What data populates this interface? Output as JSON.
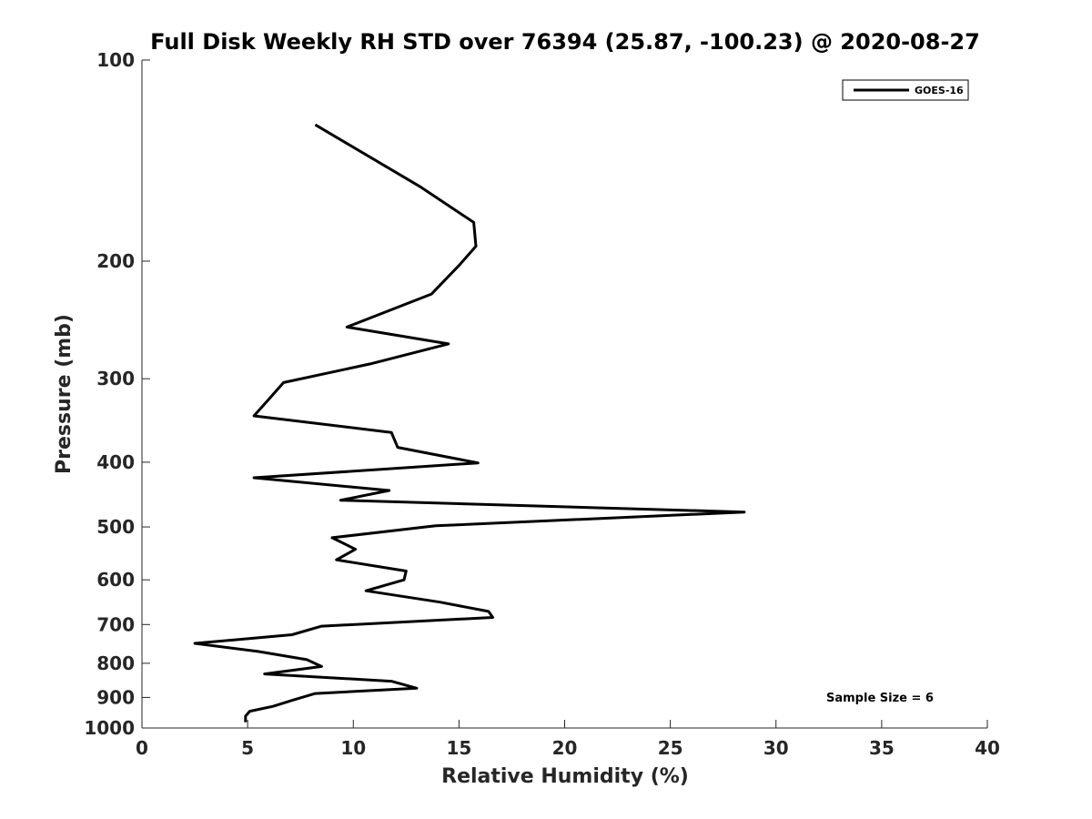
{
  "chart_data": {
    "type": "line",
    "title": "Full Disk Weekly RH STD over 76394 (25.87, -100.23) @ 2020-08-27",
    "xlabel": "Relative Humidity (%)",
    "ylabel": "Pressure (mb)",
    "xlim": [
      0,
      40
    ],
    "ylim": [
      100,
      1000
    ],
    "y_scale": "log",
    "y_inverted": true,
    "x_ticks": [
      "0",
      "5",
      "10",
      "15",
      "20",
      "25",
      "30",
      "35",
      "40"
    ],
    "y_ticks": [
      "100",
      "200",
      "300",
      "400",
      "500",
      "600",
      "700",
      "800",
      "900",
      "1000"
    ],
    "grid": false,
    "legend": {
      "placement": "top-right",
      "entries": [
        "GOES-16"
      ]
    },
    "annotation": "Sample Size = 6",
    "series": [
      {
        "name": "GOES-16",
        "color": "#000000",
        "x": [
          8.2,
          13.2,
          15.7,
          15.8,
          15.0,
          13.7,
          9.7,
          14.5,
          10.8,
          6.7,
          6.0,
          5.3,
          11.8,
          12.1,
          15.9,
          5.3,
          11.7,
          9.4,
          28.5,
          13.9,
          9.0,
          10.1,
          9.2,
          12.5,
          12.4,
          10.6,
          14.1,
          16.4,
          16.6,
          8.5,
          7.1,
          2.5,
          5.5,
          7.8,
          8.5,
          5.8,
          11.8,
          13.0,
          8.2,
          7.2,
          6.2,
          5.1,
          4.9,
          4.9
        ],
        "y": [
          125,
          155,
          175,
          190,
          203,
          224,
          251,
          266,
          285,
          304,
          322,
          341,
          361,
          380,
          401,
          422,
          441,
          456,
          475,
          498,
          519,
          540,
          560,
          582,
          600,
          623,
          648,
          669,
          683,
          704,
          725,
          747,
          768,
          790,
          809,
          830,
          851,
          872,
          888,
          907,
          928,
          944,
          960,
          980
        ]
      }
    ]
  }
}
